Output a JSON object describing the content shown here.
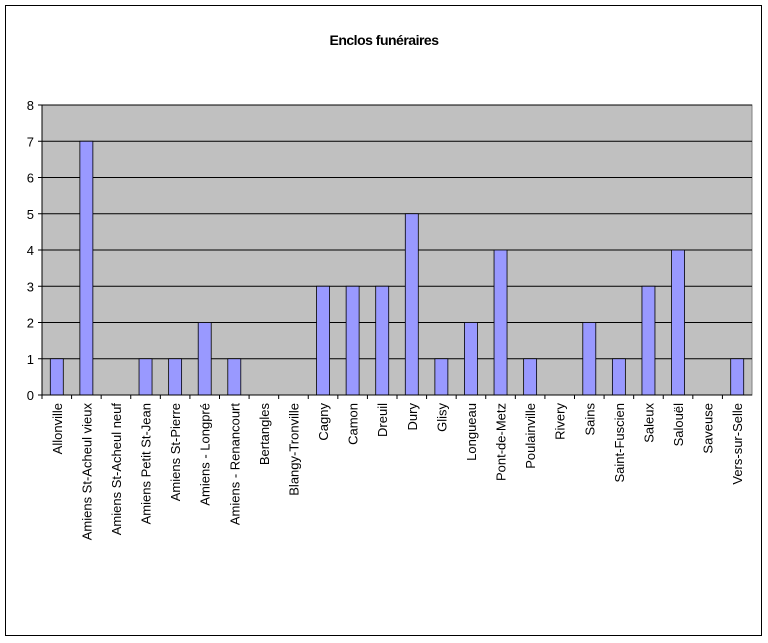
{
  "chart_data": {
    "type": "bar",
    "title": "Enclos funéraires",
    "categories": [
      "Allonville",
      "Amiens St-Acheul vieux",
      "Amiens St-Acheul neuf",
      "Amiens Petit St-Jean",
      "Amiens St-Pierre",
      "Amiens - Longpré",
      "Amiens - Renancourt",
      "Bertangles",
      "Blangy-Tronville",
      "Cagny",
      "Camon",
      "Dreuil",
      "Dury",
      "Glisy",
      "Longueau",
      "Pont-de-Metz",
      "Poulainville",
      "Rivery",
      "Sains",
      "Saint-Fuscien",
      "Saleux",
      "Salouël",
      "Saveuse",
      "Vers-sur-Selle"
    ],
    "values": [
      1,
      7,
      0,
      1,
      1,
      2,
      1,
      0,
      0,
      3,
      3,
      3,
      5,
      1,
      2,
      4,
      1,
      0,
      2,
      1,
      3,
      4,
      0,
      1
    ],
    "color": "#9999ff",
    "ylim": [
      0,
      8
    ],
    "yticks": [
      0,
      1,
      2,
      3,
      4,
      5,
      6,
      7,
      8
    ],
    "grid": true
  }
}
